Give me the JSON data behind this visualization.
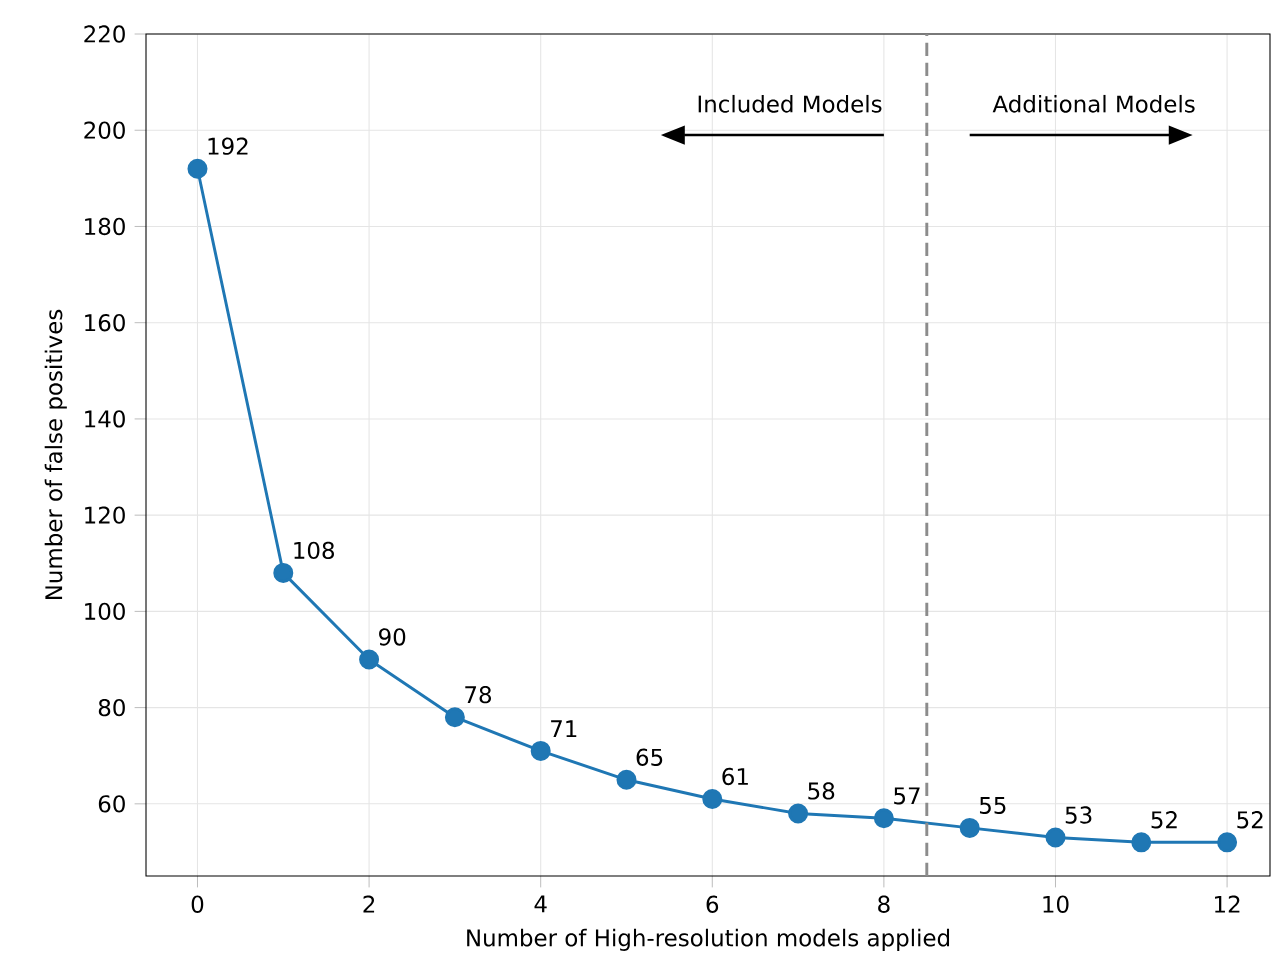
{
  "chart_data": {
    "type": "line",
    "xlabel": "Number of High-resolution models applied",
    "ylabel": "Number of false positives",
    "x": [
      0,
      1,
      2,
      3,
      4,
      5,
      6,
      7,
      8,
      9,
      10,
      11,
      12
    ],
    "series": [
      {
        "color": "#1f77b4",
        "values": [
          192,
          108,
          90,
          78,
          71,
          65,
          61,
          58,
          57,
          55,
          53,
          52,
          52
        ]
      }
    ],
    "xlim": [
      -0.6,
      12.5
    ],
    "ylim": [
      45,
      220
    ],
    "xticks": [
      0,
      2,
      4,
      6,
      8,
      10,
      12
    ],
    "yticks": [
      60,
      80,
      100,
      120,
      140,
      160,
      180,
      200,
      220
    ],
    "grid": true,
    "marker": "circle",
    "line_style": "solid",
    "data_labels": true,
    "ref_lines": [
      {
        "axis": "x",
        "value": 8.5,
        "color": "#8c8c8c",
        "line_style": "dashed"
      }
    ],
    "annotations": [
      "Included Models",
      "Additional Models"
    ]
  }
}
